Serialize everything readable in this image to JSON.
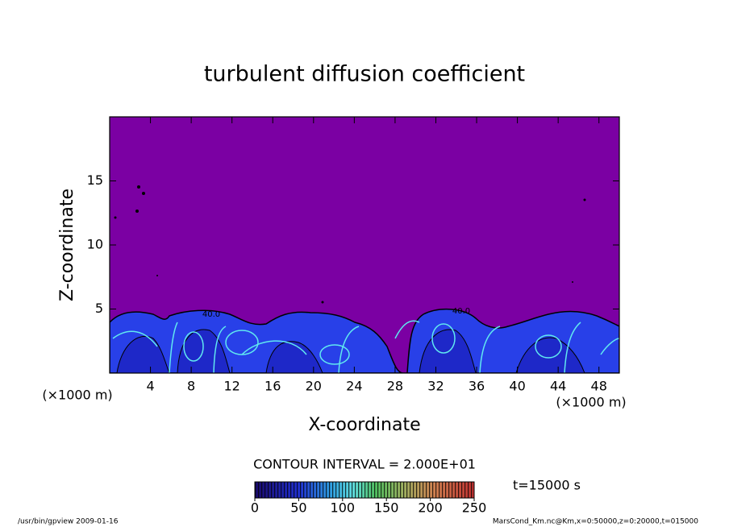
{
  "chart_data": {
    "type": "contour",
    "title": "turbulent diffusion coefficient",
    "xlabel": "X-coordinate",
    "ylabel": "Z-coordinate",
    "x_unit": "(×1000 m)",
    "xlim": [
      0,
      50
    ],
    "xticks": [
      4,
      8,
      12,
      16,
      20,
      24,
      28,
      32,
      36,
      40,
      44,
      48
    ],
    "ylim": [
      0,
      20
    ],
    "yticks": [
      5,
      10,
      15
    ],
    "contour_interval": "CONTOUR INTERVAL = 2.000E+01",
    "contour_labels": [
      "40.0",
      "40.0"
    ],
    "colorbar_lim": [
      0,
      250
    ],
    "colorbar_ticks": [
      0,
      50,
      100,
      150,
      200,
      250
    ],
    "time_label": "t=15000 s",
    "footer_left": "/usr/bin/gpview  2009-01-16",
    "footer_right": "MarsCond_Km.nc@Km,x=0:50000,z=0:20000,t=015000",
    "background_color": "#7b00a3"
  }
}
